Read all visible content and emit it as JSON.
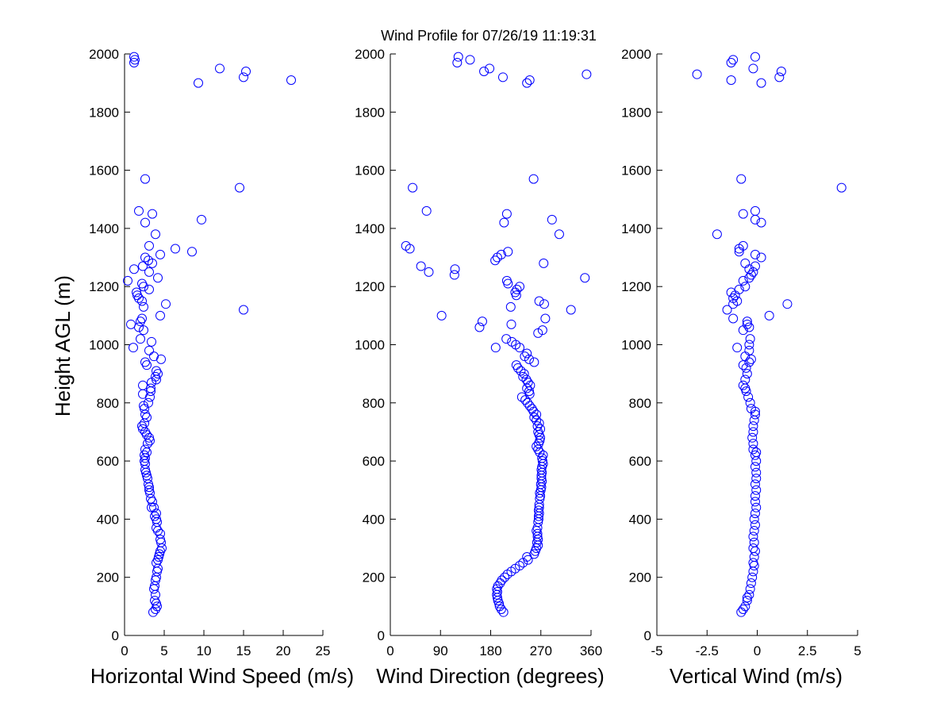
{
  "figure_title": "Wind Profile for  07/26/19 11:19:31",
  "colors": {
    "marker": "#0000ff",
    "axes": "#000000",
    "background": "#ffffff"
  },
  "chart_data": [
    {
      "type": "scatter",
      "id": "speed",
      "xlabel": "Horizontal Wind Speed (m/s)",
      "ylabel": "Height AGL (m)",
      "xlim": [
        0,
        25
      ],
      "ylim": [
        0,
        2000
      ],
      "xticks": [
        "0",
        "5",
        "10",
        "15",
        "20",
        "25"
      ],
      "yticks": [
        "0",
        "200",
        "400",
        "600",
        "800",
        "1000",
        "1200",
        "1400",
        "1600",
        "1800",
        "2000"
      ],
      "points": [
        [
          3.6,
          80
        ],
        [
          3.9,
          90
        ],
        [
          4.1,
          100
        ],
        [
          4.0,
          110
        ],
        [
          3.8,
          120
        ],
        [
          3.9,
          140
        ],
        [
          3.7,
          160
        ],
        [
          3.8,
          170
        ],
        [
          3.9,
          190
        ],
        [
          4.0,
          200
        ],
        [
          4.1,
          220
        ],
        [
          4.2,
          230
        ],
        [
          4.0,
          250
        ],
        [
          4.2,
          260
        ],
        [
          4.3,
          270
        ],
        [
          4.4,
          280
        ],
        [
          4.5,
          290
        ],
        [
          4.7,
          300
        ],
        [
          4.6,
          320
        ],
        [
          4.5,
          330
        ],
        [
          4.5,
          350
        ],
        [
          4.2,
          360
        ],
        [
          4.0,
          370
        ],
        [
          4.1,
          390
        ],
        [
          4.0,
          400
        ],
        [
          3.8,
          410
        ],
        [
          4.0,
          420
        ],
        [
          3.7,
          440
        ],
        [
          3.4,
          440
        ],
        [
          3.5,
          460
        ],
        [
          3.3,
          470
        ],
        [
          3.2,
          490
        ],
        [
          3.1,
          500
        ],
        [
          3.1,
          510
        ],
        [
          3.0,
          520
        ],
        [
          2.9,
          540
        ],
        [
          2.8,
          550
        ],
        [
          2.7,
          560
        ],
        [
          2.6,
          570
        ],
        [
          2.6,
          590
        ],
        [
          2.5,
          600
        ],
        [
          2.6,
          610
        ],
        [
          2.5,
          620
        ],
        [
          2.8,
          630
        ],
        [
          2.6,
          640
        ],
        [
          2.9,
          660
        ],
        [
          3.2,
          670
        ],
        [
          3.1,
          680
        ],
        [
          2.8,
          690
        ],
        [
          2.6,
          700
        ],
        [
          2.3,
          710
        ],
        [
          2.2,
          720
        ],
        [
          2.5,
          730
        ],
        [
          2.8,
          750
        ],
        [
          2.6,
          760
        ],
        [
          2.5,
          780
        ],
        [
          2.4,
          790
        ],
        [
          3.0,
          800
        ],
        [
          3.2,
          820
        ],
        [
          2.3,
          830
        ],
        [
          3.3,
          840
        ],
        [
          3.3,
          850
        ],
        [
          2.3,
          860
        ],
        [
          3.4,
          870
        ],
        [
          4.0,
          880
        ],
        [
          3.9,
          890
        ],
        [
          4.2,
          900
        ],
        [
          4.0,
          910
        ],
        [
          2.8,
          930
        ],
        [
          2.6,
          940
        ],
        [
          4.6,
          950
        ],
        [
          3.7,
          960
        ],
        [
          3.1,
          980
        ],
        [
          1.1,
          990
        ],
        [
          3.4,
          1010
        ],
        [
          2.0,
          1020
        ],
        [
          2.4,
          1050
        ],
        [
          1.8,
          1060
        ],
        [
          0.8,
          1070
        ],
        [
          2.0,
          1080
        ],
        [
          2.2,
          1090
        ],
        [
          4.5,
          1100
        ],
        [
          15.0,
          1120
        ],
        [
          2.4,
          1130
        ],
        [
          5.2,
          1140
        ],
        [
          2.2,
          1150
        ],
        [
          1.8,
          1160
        ],
        [
          1.6,
          1170
        ],
        [
          1.5,
          1180
        ],
        [
          3.1,
          1190
        ],
        [
          2.4,
          1200
        ],
        [
          2.2,
          1210
        ],
        [
          0.4,
          1220
        ],
        [
          4.2,
          1230
        ],
        [
          3.1,
          1250
        ],
        [
          1.2,
          1260
        ],
        [
          2.3,
          1270
        ],
        [
          3.5,
          1280
        ],
        [
          3.0,
          1290
        ],
        [
          2.6,
          1300
        ],
        [
          4.5,
          1310
        ],
        [
          8.5,
          1320
        ],
        [
          6.4,
          1330
        ],
        [
          3.1,
          1340
        ],
        [
          3.9,
          1380
        ],
        [
          2.6,
          1420
        ],
        [
          9.7,
          1430
        ],
        [
          3.5,
          1450
        ],
        [
          1.8,
          1460
        ],
        [
          14.5,
          1540
        ],
        [
          2.6,
          1570
        ],
        [
          9.3,
          1900
        ],
        [
          21.0,
          1910
        ],
        [
          15.0,
          1920
        ],
        [
          15.3,
          1940
        ],
        [
          12.0,
          1950
        ],
        [
          1.2,
          1970
        ],
        [
          1.3,
          1980
        ],
        [
          1.2,
          1990
        ]
      ]
    },
    {
      "type": "scatter",
      "id": "direction",
      "xlabel": "Wind Direction (degrees)",
      "ylabel": "",
      "xlim": [
        0,
        360
      ],
      "ylim": [
        0,
        2000
      ],
      "xticks": [
        "0",
        "90",
        "180",
        "270",
        "360"
      ],
      "yticks": [
        "0",
        "200",
        "400",
        "600",
        "800",
        "1000",
        "1200",
        "1400",
        "1600",
        "1800",
        "2000"
      ],
      "points": [
        [
          203,
          80
        ],
        [
          199,
          90
        ],
        [
          196,
          100
        ],
        [
          195,
          110
        ],
        [
          193,
          120
        ],
        [
          192,
          130
        ],
        [
          191,
          140
        ],
        [
          192,
          150
        ],
        [
          191,
          160
        ],
        [
          193,
          170
        ],
        [
          197,
          180
        ],
        [
          200,
          190
        ],
        [
          205,
          200
        ],
        [
          210,
          210
        ],
        [
          217,
          220
        ],
        [
          224,
          230
        ],
        [
          232,
          240
        ],
        [
          238,
          250
        ],
        [
          247,
          260
        ],
        [
          245,
          270
        ],
        [
          258,
          280
        ],
        [
          260,
          290
        ],
        [
          262,
          300
        ],
        [
          265,
          310
        ],
        [
          263,
          320
        ],
        [
          265,
          330
        ],
        [
          264,
          340
        ],
        [
          264,
          350
        ],
        [
          262,
          360
        ],
        [
          264,
          370
        ],
        [
          265,
          390
        ],
        [
          266,
          400
        ],
        [
          266,
          410
        ],
        [
          267,
          420
        ],
        [
          266,
          430
        ],
        [
          267,
          440
        ],
        [
          267,
          450
        ],
        [
          268,
          470
        ],
        [
          269,
          480
        ],
        [
          268,
          490
        ],
        [
          270,
          500
        ],
        [
          271,
          510
        ],
        [
          270,
          520
        ],
        [
          272,
          530
        ],
        [
          271,
          540
        ],
        [
          271,
          550
        ],
        [
          272,
          560
        ],
        [
          271,
          570
        ],
        [
          272,
          580
        ],
        [
          274,
          590
        ],
        [
          273,
          600
        ],
        [
          272,
          610
        ],
        [
          274,
          620
        ],
        [
          268,
          630
        ],
        [
          265,
          640
        ],
        [
          262,
          650
        ],
        [
          266,
          660
        ],
        [
          268,
          670
        ],
        [
          269,
          680
        ],
        [
          267,
          690
        ],
        [
          265,
          700
        ],
        [
          269,
          710
        ],
        [
          264,
          720
        ],
        [
          267,
          730
        ],
        [
          262,
          740
        ],
        [
          258,
          750
        ],
        [
          262,
          760
        ],
        [
          257,
          770
        ],
        [
          254,
          780
        ],
        [
          250,
          790
        ],
        [
          246,
          800
        ],
        [
          242,
          810
        ],
        [
          236,
          820
        ],
        [
          250,
          830
        ],
        [
          249,
          840
        ],
        [
          245,
          850
        ],
        [
          251,
          860
        ],
        [
          247,
          870
        ],
        [
          244,
          880
        ],
        [
          238,
          890
        ],
        [
          240,
          900
        ],
        [
          234,
          910
        ],
        [
          229,
          920
        ],
        [
          226,
          930
        ],
        [
          258,
          940
        ],
        [
          249,
          950
        ],
        [
          241,
          960
        ],
        [
          245,
          970
        ],
        [
          232,
          990
        ],
        [
          189,
          990
        ],
        [
          225,
          1000
        ],
        [
          218,
          1010
        ],
        [
          208,
          1020
        ],
        [
          265,
          1040
        ],
        [
          273,
          1050
        ],
        [
          160,
          1060
        ],
        [
          217,
          1070
        ],
        [
          165,
          1080
        ],
        [
          278,
          1090
        ],
        [
          92,
          1100
        ],
        [
          324,
          1120
        ],
        [
          216,
          1130
        ],
        [
          276,
          1140
        ],
        [
          267,
          1150
        ],
        [
          226,
          1170
        ],
        [
          224,
          1180
        ],
        [
          227,
          1190
        ],
        [
          232,
          1200
        ],
        [
          211,
          1210
        ],
        [
          209,
          1220
        ],
        [
          349,
          1230
        ],
        [
          115,
          1240
        ],
        [
          69,
          1250
        ],
        [
          116,
          1260
        ],
        [
          55,
          1270
        ],
        [
          275,
          1280
        ],
        [
          188,
          1290
        ],
        [
          192,
          1300
        ],
        [
          199,
          1310
        ],
        [
          211,
          1320
        ],
        [
          35,
          1330
        ],
        [
          28,
          1340
        ],
        [
          303,
          1380
        ],
        [
          204,
          1420
        ],
        [
          290,
          1430
        ],
        [
          209,
          1450
        ],
        [
          65,
          1460
        ],
        [
          40,
          1540
        ],
        [
          257,
          1570
        ],
        [
          245,
          1900
        ],
        [
          250,
          1910
        ],
        [
          202,
          1920
        ],
        [
          352,
          1930
        ],
        [
          168,
          1940
        ],
        [
          178,
          1950
        ],
        [
          120,
          1970
        ],
        [
          143,
          1980
        ],
        [
          122,
          1990
        ]
      ]
    },
    {
      "type": "scatter",
      "id": "vertical",
      "xlabel": "Vertical Wind (m/s)",
      "ylabel": "",
      "xlim": [
        -5,
        5
      ],
      "ylim": [
        0,
        2000
      ],
      "xticks": [
        "-5",
        "-2.5",
        "0",
        "2.5",
        "5"
      ],
      "yticks": [
        "0",
        "200",
        "400",
        "600",
        "800",
        "1000",
        "1200",
        "1400",
        "1600",
        "1800",
        "2000"
      ],
      "points": [
        [
          -0.8,
          80
        ],
        [
          -0.7,
          90
        ],
        [
          -0.6,
          100
        ],
        [
          -0.5,
          120
        ],
        [
          -0.5,
          130
        ],
        [
          -0.4,
          140
        ],
        [
          -0.35,
          160
        ],
        [
          -0.3,
          180
        ],
        [
          -0.25,
          200
        ],
        [
          -0.2,
          220
        ],
        [
          -0.15,
          240
        ],
        [
          -0.2,
          250
        ],
        [
          -0.15,
          270
        ],
        [
          -0.1,
          290
        ],
        [
          -0.2,
          300
        ],
        [
          -0.15,
          320
        ],
        [
          -0.2,
          340
        ],
        [
          -0.15,
          360
        ],
        [
          -0.1,
          380
        ],
        [
          -0.15,
          400
        ],
        [
          -0.1,
          420
        ],
        [
          -0.05,
          440
        ],
        [
          -0.1,
          460
        ],
        [
          -0.1,
          480
        ],
        [
          -0.05,
          500
        ],
        [
          -0.1,
          520
        ],
        [
          -0.05,
          540
        ],
        [
          -0.05,
          560
        ],
        [
          -0.1,
          580
        ],
        [
          -0.05,
          600
        ],
        [
          -0.1,
          620
        ],
        [
          -0.05,
          630
        ],
        [
          -0.2,
          640
        ],
        [
          -0.2,
          660
        ],
        [
          -0.25,
          680
        ],
        [
          -0.2,
          700
        ],
        [
          -0.2,
          720
        ],
        [
          -0.15,
          740
        ],
        [
          -0.1,
          760
        ],
        [
          -0.1,
          770
        ],
        [
          -0.3,
          780
        ],
        [
          -0.35,
          800
        ],
        [
          -0.45,
          820
        ],
        [
          -0.55,
          840
        ],
        [
          -0.6,
          850
        ],
        [
          -0.7,
          860
        ],
        [
          -0.6,
          880
        ],
        [
          -0.5,
          900
        ],
        [
          -0.55,
          920
        ],
        [
          -0.7,
          930
        ],
        [
          -0.4,
          940
        ],
        [
          -0.3,
          950
        ],
        [
          -0.6,
          960
        ],
        [
          -0.4,
          980
        ],
        [
          -1.0,
          990
        ],
        [
          -0.4,
          1000
        ],
        [
          -0.35,
          1020
        ],
        [
          -0.7,
          1050
        ],
        [
          -0.4,
          1060
        ],
        [
          -0.5,
          1070
        ],
        [
          -0.5,
          1080
        ],
        [
          -1.2,
          1090
        ],
        [
          0.6,
          1100
        ],
        [
          -1.5,
          1120
        ],
        [
          -1.2,
          1140
        ],
        [
          1.5,
          1140
        ],
        [
          -1.0,
          1150
        ],
        [
          -1.2,
          1160
        ],
        [
          -1.1,
          1170
        ],
        [
          -1.3,
          1180
        ],
        [
          -0.9,
          1190
        ],
        [
          -0.6,
          1200
        ],
        [
          -0.7,
          1220
        ],
        [
          -0.4,
          1230
        ],
        [
          -0.3,
          1240
        ],
        [
          -0.2,
          1250
        ],
        [
          -0.4,
          1260
        ],
        [
          -0.1,
          1270
        ],
        [
          -0.6,
          1280
        ],
        [
          0.2,
          1300
        ],
        [
          -0.1,
          1310
        ],
        [
          -0.9,
          1320
        ],
        [
          -0.9,
          1330
        ],
        [
          -0.7,
          1340
        ],
        [
          -2.0,
          1380
        ],
        [
          0.2,
          1420
        ],
        [
          -0.1,
          1430
        ],
        [
          -0.7,
          1450
        ],
        [
          -0.1,
          1460
        ],
        [
          4.2,
          1540
        ],
        [
          -0.8,
          1570
        ],
        [
          0.2,
          1900
        ],
        [
          -1.3,
          1910
        ],
        [
          1.1,
          1920
        ],
        [
          -3.0,
          1930
        ],
        [
          1.2,
          1940
        ],
        [
          -0.2,
          1950
        ],
        [
          -1.3,
          1970
        ],
        [
          -1.2,
          1980
        ],
        [
          -0.1,
          1990
        ]
      ]
    }
  ]
}
